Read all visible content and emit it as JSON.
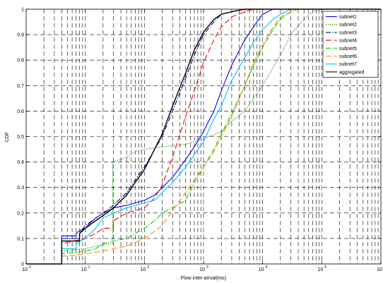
{
  "chart_data": {
    "type": "line",
    "title": "",
    "xlabel": "Flow inter-arrval(ms)",
    "ylabel": "CDF",
    "xscale": "log",
    "xlim": [
      1,
      1000000
    ],
    "ylim": [
      0,
      1
    ],
    "xticks": [
      {
        "base": "10",
        "exp": "0",
        "value": 1
      },
      {
        "base": "10",
        "exp": "1",
        "value": 10
      },
      {
        "base": "10",
        "exp": "2",
        "value": 100
      },
      {
        "base": "10",
        "exp": "3",
        "value": 1000
      },
      {
        "base": "10",
        "exp": "4",
        "value": 10000
      },
      {
        "base": "10",
        "exp": "5",
        "value": 100000
      },
      {
        "base": "10",
        "exp": "6",
        "value": 1000000
      }
    ],
    "yticks": [
      "0",
      "0.1",
      "0.2",
      "0.3",
      "0.4",
      "0.5",
      "0.6",
      "0.7",
      "0.8",
      "0.9",
      "1"
    ],
    "grid": true,
    "legend_position": "top-right",
    "series": [
      {
        "name": "subnet1",
        "color": "#0000ff",
        "dash": "solid",
        "points": [
          [
            1,
            0
          ],
          [
            4,
            0
          ],
          [
            4,
            0.11
          ],
          [
            7,
            0.11
          ],
          [
            7,
            0.12
          ],
          [
            8,
            0.13
          ],
          [
            10,
            0.14
          ],
          [
            12,
            0.16
          ],
          [
            15,
            0.18
          ],
          [
            20,
            0.2
          ],
          [
            25,
            0.21
          ],
          [
            30,
            0.22
          ],
          [
            50,
            0.23
          ],
          [
            100,
            0.25
          ],
          [
            150,
            0.27
          ],
          [
            200,
            0.3
          ],
          [
            300,
            0.34
          ],
          [
            500,
            0.41
          ],
          [
            700,
            0.46
          ],
          [
            1000,
            0.52
          ],
          [
            1500,
            0.6
          ],
          [
            2000,
            0.68
          ],
          [
            3000,
            0.78
          ],
          [
            5000,
            0.88
          ],
          [
            8000,
            0.95
          ],
          [
            10000,
            0.98
          ],
          [
            15000,
            1.0
          ],
          [
            1000000,
            1.0
          ]
        ]
      },
      {
        "name": "subnet2",
        "color": "#008000",
        "dash": "dotted",
        "points": [
          [
            1,
            0
          ],
          [
            4,
            0
          ],
          [
            4,
            0.05
          ],
          [
            10,
            0.06
          ],
          [
            15,
            0.07
          ],
          [
            25,
            0.08
          ],
          [
            29,
            0.08
          ],
          [
            29,
            0.4
          ],
          [
            40,
            0.41
          ],
          [
            50,
            0.42
          ],
          [
            70,
            0.44
          ],
          [
            100,
            0.45
          ],
          [
            200,
            0.46
          ],
          [
            500,
            0.47
          ],
          [
            1000,
            0.49
          ],
          [
            2000,
            0.52
          ],
          [
            3000,
            0.56
          ],
          [
            5000,
            0.6
          ],
          [
            10000,
            0.7
          ],
          [
            20000,
            0.82
          ],
          [
            30000,
            0.9
          ],
          [
            50000,
            0.96
          ],
          [
            70000,
            0.99
          ],
          [
            100000,
            1.0
          ],
          [
            1000000,
            1.0
          ]
        ]
      },
      {
        "name": "subnet3",
        "color": "#00008b",
        "dash": "dashdot",
        "points": [
          [
            1,
            0
          ],
          [
            4,
            0
          ],
          [
            4,
            0.1
          ],
          [
            8,
            0.1
          ],
          [
            8,
            0.12
          ],
          [
            10,
            0.15
          ],
          [
            15,
            0.18
          ],
          [
            20,
            0.2
          ],
          [
            30,
            0.23
          ],
          [
            50,
            0.28
          ],
          [
            70,
            0.33
          ],
          [
            100,
            0.38
          ],
          [
            200,
            0.5
          ],
          [
            300,
            0.6
          ],
          [
            500,
            0.73
          ],
          [
            700,
            0.82
          ],
          [
            1000,
            0.9
          ],
          [
            1500,
            0.95
          ],
          [
            2000,
            0.98
          ],
          [
            3000,
            0.99
          ],
          [
            5000,
            1.0
          ],
          [
            1000000,
            1.0
          ]
        ]
      },
      {
        "name": "subnet4",
        "color": "#ff0000",
        "dash": "longdash",
        "points": [
          [
            1,
            0
          ],
          [
            4,
            0
          ],
          [
            4,
            0.08
          ],
          [
            10,
            0.1
          ],
          [
            15,
            0.12
          ],
          [
            20,
            0.14
          ],
          [
            30,
            0.14
          ],
          [
            30,
            0.17
          ],
          [
            50,
            0.2
          ],
          [
            100,
            0.22
          ],
          [
            150,
            0.26
          ],
          [
            200,
            0.31
          ],
          [
            300,
            0.42
          ],
          [
            500,
            0.58
          ],
          [
            700,
            0.68
          ],
          [
            1000,
            0.79
          ],
          [
            1500,
            0.88
          ],
          [
            2000,
            0.93
          ],
          [
            3000,
            0.97
          ],
          [
            5000,
            0.99
          ],
          [
            7000,
            1.0
          ],
          [
            1000000,
            1.0
          ]
        ]
      },
      {
        "name": "subnet5",
        "color": "#00cc00",
        "dash": "dashdot",
        "points": [
          [
            1,
            0
          ],
          [
            4,
            0
          ],
          [
            4,
            0.04
          ],
          [
            10,
            0.05
          ],
          [
            15,
            0.06
          ],
          [
            20,
            0.08
          ],
          [
            30,
            0.09
          ],
          [
            50,
            0.1
          ],
          [
            70,
            0.12
          ],
          [
            100,
            0.14
          ],
          [
            150,
            0.17
          ],
          [
            200,
            0.2
          ],
          [
            300,
            0.22
          ],
          [
            500,
            0.25
          ],
          [
            700,
            0.32
          ],
          [
            1000,
            0.38
          ],
          [
            1500,
            0.45
          ],
          [
            2000,
            0.51
          ],
          [
            3000,
            0.59
          ],
          [
            5000,
            0.7
          ],
          [
            7000,
            0.78
          ],
          [
            10000,
            0.85
          ],
          [
            15000,
            0.92
          ],
          [
            20000,
            0.96
          ],
          [
            30000,
            0.99
          ],
          [
            40000,
            1.0
          ],
          [
            1000000,
            1.0
          ]
        ]
      },
      {
        "name": "subnet6",
        "color": "#ff8c00",
        "dash": "longdash",
        "points": [
          [
            1,
            0
          ],
          [
            4,
            0
          ],
          [
            4,
            0.03
          ],
          [
            10,
            0.04
          ],
          [
            20,
            0.05
          ],
          [
            30,
            0.06
          ],
          [
            50,
            0.07
          ],
          [
            100,
            0.1
          ],
          [
            200,
            0.15
          ],
          [
            300,
            0.21
          ],
          [
            500,
            0.28
          ],
          [
            700,
            0.33
          ],
          [
            1000,
            0.38
          ],
          [
            1500,
            0.44
          ],
          [
            2000,
            0.5
          ],
          [
            3000,
            0.58
          ],
          [
            5000,
            0.7
          ],
          [
            7000,
            0.79
          ],
          [
            10000,
            0.86
          ],
          [
            15000,
            0.93
          ],
          [
            20000,
            0.97
          ],
          [
            30000,
            0.99
          ],
          [
            40000,
            1.0
          ],
          [
            1000000,
            1.0
          ]
        ]
      },
      {
        "name": "subnet7",
        "color": "#00bfff",
        "dash": "solid",
        "points": [
          [
            1,
            0
          ],
          [
            4,
            0
          ],
          [
            4,
            0.06
          ],
          [
            7,
            0.06
          ],
          [
            7,
            0.08
          ],
          [
            10,
            0.1
          ],
          [
            15,
            0.14
          ],
          [
            20,
            0.18
          ],
          [
            30,
            0.2
          ],
          [
            50,
            0.22
          ],
          [
            100,
            0.24
          ],
          [
            150,
            0.25
          ],
          [
            200,
            0.28
          ],
          [
            300,
            0.32
          ],
          [
            500,
            0.38
          ],
          [
            700,
            0.43
          ],
          [
            1000,
            0.48
          ],
          [
            1500,
            0.57
          ],
          [
            2000,
            0.62
          ],
          [
            3000,
            0.72
          ],
          [
            5000,
            0.81
          ],
          [
            7000,
            0.87
          ],
          [
            10000,
            0.92
          ],
          [
            15000,
            0.96
          ],
          [
            20000,
            0.98
          ],
          [
            30000,
            1.0
          ],
          [
            1000000,
            1.0
          ]
        ]
      },
      {
        "name": "aggregated",
        "color": "#000000",
        "dash": "solid",
        "points": [
          [
            1,
            0
          ],
          [
            4,
            0
          ],
          [
            4,
            0.09
          ],
          [
            8,
            0.09
          ],
          [
            8,
            0.12
          ],
          [
            10,
            0.14
          ],
          [
            15,
            0.17
          ],
          [
            20,
            0.19
          ],
          [
            30,
            0.22
          ],
          [
            50,
            0.27
          ],
          [
            70,
            0.32
          ],
          [
            100,
            0.37
          ],
          [
            200,
            0.51
          ],
          [
            300,
            0.62
          ],
          [
            500,
            0.75
          ],
          [
            700,
            0.84
          ],
          [
            1000,
            0.91
          ],
          [
            1500,
            0.96
          ],
          [
            2000,
            0.98
          ],
          [
            3000,
            0.99
          ],
          [
            5000,
            1.0
          ],
          [
            1000000,
            1.0
          ]
        ]
      }
    ]
  }
}
